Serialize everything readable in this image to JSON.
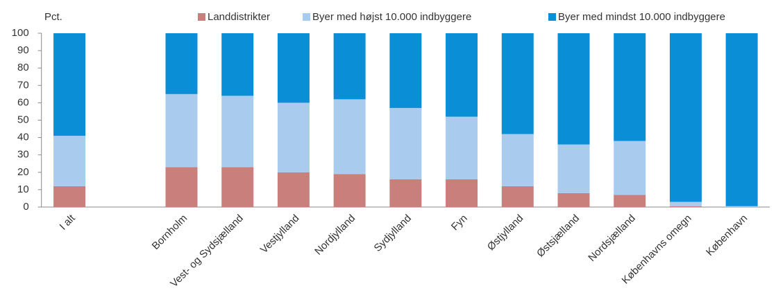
{
  "chart_data": {
    "type": "stacked_bar",
    "y_label": "Pct.",
    "categories": [
      "I alt",
      null,
      "Bornholm",
      "Vest- og Sydsjælland",
      "Vestjylland",
      "Nordjylland",
      "Sydjylland",
      "Fyn",
      "Østjylland",
      "Østsjælland",
      "Nordsjælland",
      "Københavns omegn",
      "København"
    ],
    "series": [
      {
        "name": "Landdistrikter",
        "color": "#c9807d",
        "values": [
          12,
          null,
          23,
          23,
          20,
          19,
          16,
          16,
          12,
          8,
          7,
          0.5,
          0
        ]
      },
      {
        "name": "Byer med højst 10.000 indbyggere",
        "color": "#a9cbee",
        "values": [
          29,
          null,
          42,
          41,
          40,
          43,
          41,
          36,
          30,
          28,
          31,
          2.5,
          0.5
        ]
      },
      {
        "name": "Byer med mindst 10.000 indbyggere",
        "color": "#0a8fd6",
        "values": [
          59,
          null,
          35,
          36,
          40,
          38,
          43,
          48,
          58,
          64,
          62,
          97,
          99.5
        ]
      }
    ],
    "ylim": [
      0,
      100
    ],
    "yticks": [
      0,
      10,
      20,
      30,
      40,
      50,
      60,
      70,
      80,
      90,
      100
    ],
    "grid": false,
    "legend": "top"
  }
}
